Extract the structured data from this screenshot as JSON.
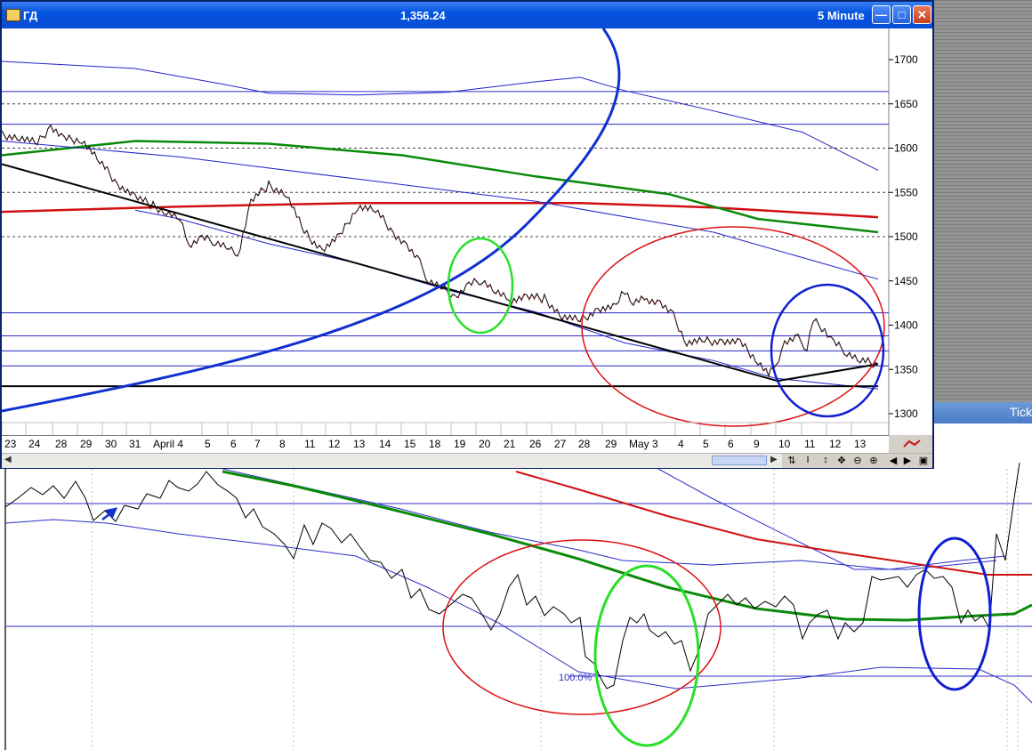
{
  "window": {
    "symbol": "ГД",
    "last_price": "1,356.24",
    "interval": "5 Minute"
  },
  "background_window": {
    "tab_label": "Tick"
  },
  "chart_data": {
    "type": "line",
    "title": "",
    "y_ticks": [
      "1700",
      "1650",
      "1600",
      "1550",
      "1500",
      "1450",
      "1400",
      "1350",
      "1300"
    ],
    "ylim": [
      1290,
      1740
    ],
    "x_tick_labels": [
      "23",
      "24",
      "28",
      "29",
      "30",
      "31",
      "April 4",
      "5",
      "6",
      "7",
      "8",
      "11",
      "12",
      "13",
      "14",
      "15",
      "18",
      "19",
      "20",
      "21",
      "26",
      "27",
      "28",
      "29",
      "May 3",
      "4",
      "5",
      "6",
      "9",
      "10",
      "11",
      "12",
      "13"
    ],
    "price_path": [
      [
        0,
        1615
      ],
      [
        20,
        1612
      ],
      [
        40,
        1605
      ],
      [
        55,
        1625
      ],
      [
        70,
        1610
      ],
      [
        90,
        1610
      ],
      [
        110,
        1585
      ],
      [
        130,
        1560
      ],
      [
        150,
        1545
      ],
      [
        170,
        1535
      ],
      [
        185,
        1528
      ],
      [
        200,
        1520
      ],
      [
        210,
        1490
      ],
      [
        225,
        1498
      ],
      [
        240,
        1495
      ],
      [
        255,
        1488
      ],
      [
        265,
        1478
      ],
      [
        280,
        1540
      ],
      [
        300,
        1558
      ],
      [
        320,
        1548
      ],
      [
        340,
        1505
      ],
      [
        360,
        1485
      ],
      [
        380,
        1500
      ],
      [
        400,
        1535
      ],
      [
        420,
        1530
      ],
      [
        440,
        1505
      ],
      [
        455,
        1490
      ],
      [
        470,
        1470
      ],
      [
        480,
        1450
      ],
      [
        495,
        1442
      ],
      [
        510,
        1432
      ],
      [
        525,
        1445
      ],
      [
        540,
        1452
      ],
      [
        555,
        1438
      ],
      [
        570,
        1428
      ],
      [
        590,
        1432
      ],
      [
        610,
        1430
      ],
      [
        630,
        1410
      ],
      [
        650,
        1405
      ],
      [
        670,
        1418
      ],
      [
        690,
        1420
      ],
      [
        700,
        1440
      ],
      [
        710,
        1425
      ],
      [
        725,
        1430
      ],
      [
        740,
        1425
      ],
      [
        755,
        1410
      ],
      [
        770,
        1380
      ],
      [
        790,
        1382
      ],
      [
        810,
        1382
      ],
      [
        830,
        1380
      ],
      [
        850,
        1360
      ],
      [
        862,
        1345
      ],
      [
        870,
        1355
      ],
      [
        880,
        1380
      ],
      [
        895,
        1385
      ],
      [
        905,
        1375
      ],
      [
        912,
        1405
      ],
      [
        925,
        1395
      ],
      [
        935,
        1380
      ],
      [
        950,
        1370
      ],
      [
        965,
        1360
      ],
      [
        985,
        1356
      ]
    ],
    "series": [
      {
        "name": "",
        "color": "#d01010",
        "values": [
          [
            0,
            1528
          ],
          [
            200,
            1534
          ],
          [
            400,
            1538
          ],
          [
            650,
            1538
          ],
          [
            800,
            1533
          ],
          [
            985,
            1522
          ]
        ]
      },
      {
        "name": "",
        "color": "#0a8a0a",
        "values": [
          [
            0,
            1592
          ],
          [
            150,
            1608
          ],
          [
            300,
            1605
          ],
          [
            450,
            1592
          ],
          [
            600,
            1568
          ],
          [
            750,
            1548
          ],
          [
            850,
            1520
          ],
          [
            985,
            1505
          ]
        ]
      },
      {
        "name": "",
        "color": "#2222cc",
        "values": [
          [
            0,
            1698
          ],
          [
            150,
            1690
          ],
          [
            250,
            1672
          ],
          [
            300,
            1662
          ],
          [
            400,
            1660
          ],
          [
            500,
            1663
          ],
          [
            600,
            1675
          ],
          [
            650,
            1680
          ],
          [
            700,
            1665
          ],
          [
            800,
            1642
          ],
          [
            900,
            1618
          ],
          [
            985,
            1575
          ]
        ]
      },
      {
        "name": "",
        "color": "#2222cc",
        "values": [
          [
            0,
            1608
          ],
          [
            200,
            1590
          ],
          [
            400,
            1565
          ],
          [
            600,
            1540
          ],
          [
            800,
            1505
          ],
          [
            985,
            1452
          ]
        ]
      },
      {
        "name": "",
        "color": "#2222cc",
        "values": [
          [
            150,
            1530
          ],
          [
            200,
            1520
          ],
          [
            300,
            1492
          ],
          [
            400,
            1470
          ],
          [
            500,
            1440
          ],
          [
            600,
            1415
          ],
          [
            700,
            1380
          ],
          [
            800,
            1360
          ],
          [
            870,
            1340
          ],
          [
            985,
            1328
          ]
        ]
      }
    ],
    "trendlines": [
      {
        "color": "#000000",
        "points": [
          [
            0,
            1582
          ],
          [
            872,
            1337
          ]
        ]
      },
      {
        "color": "#000000",
        "points": [
          [
            872,
            1337
          ],
          [
            985,
            1356
          ]
        ]
      },
      {
        "color": "#000000",
        "points": [
          [
            0,
            1331
          ],
          [
            985,
            1331
          ]
        ]
      }
    ],
    "horizontal_levels": [
      1664,
      1627,
      1414,
      1388,
      1371,
      1354
    ],
    "dotted_levels": [
      1650,
      1600,
      1550,
      1500
    ],
    "parabola": {
      "color": "#1030d0"
    },
    "annotations": [
      {
        "shape": "ellipse",
        "color": "#28e028",
        "label": "green ellipse around 19-20 April"
      },
      {
        "shape": "ellipse",
        "color": "#dd1010",
        "label": "red ellipse May"
      },
      {
        "shape": "ellipse",
        "color": "#1020d0",
        "label": "blue ellipse 10-13 May"
      }
    ]
  },
  "lower_chart": {
    "label": "100.0%"
  }
}
